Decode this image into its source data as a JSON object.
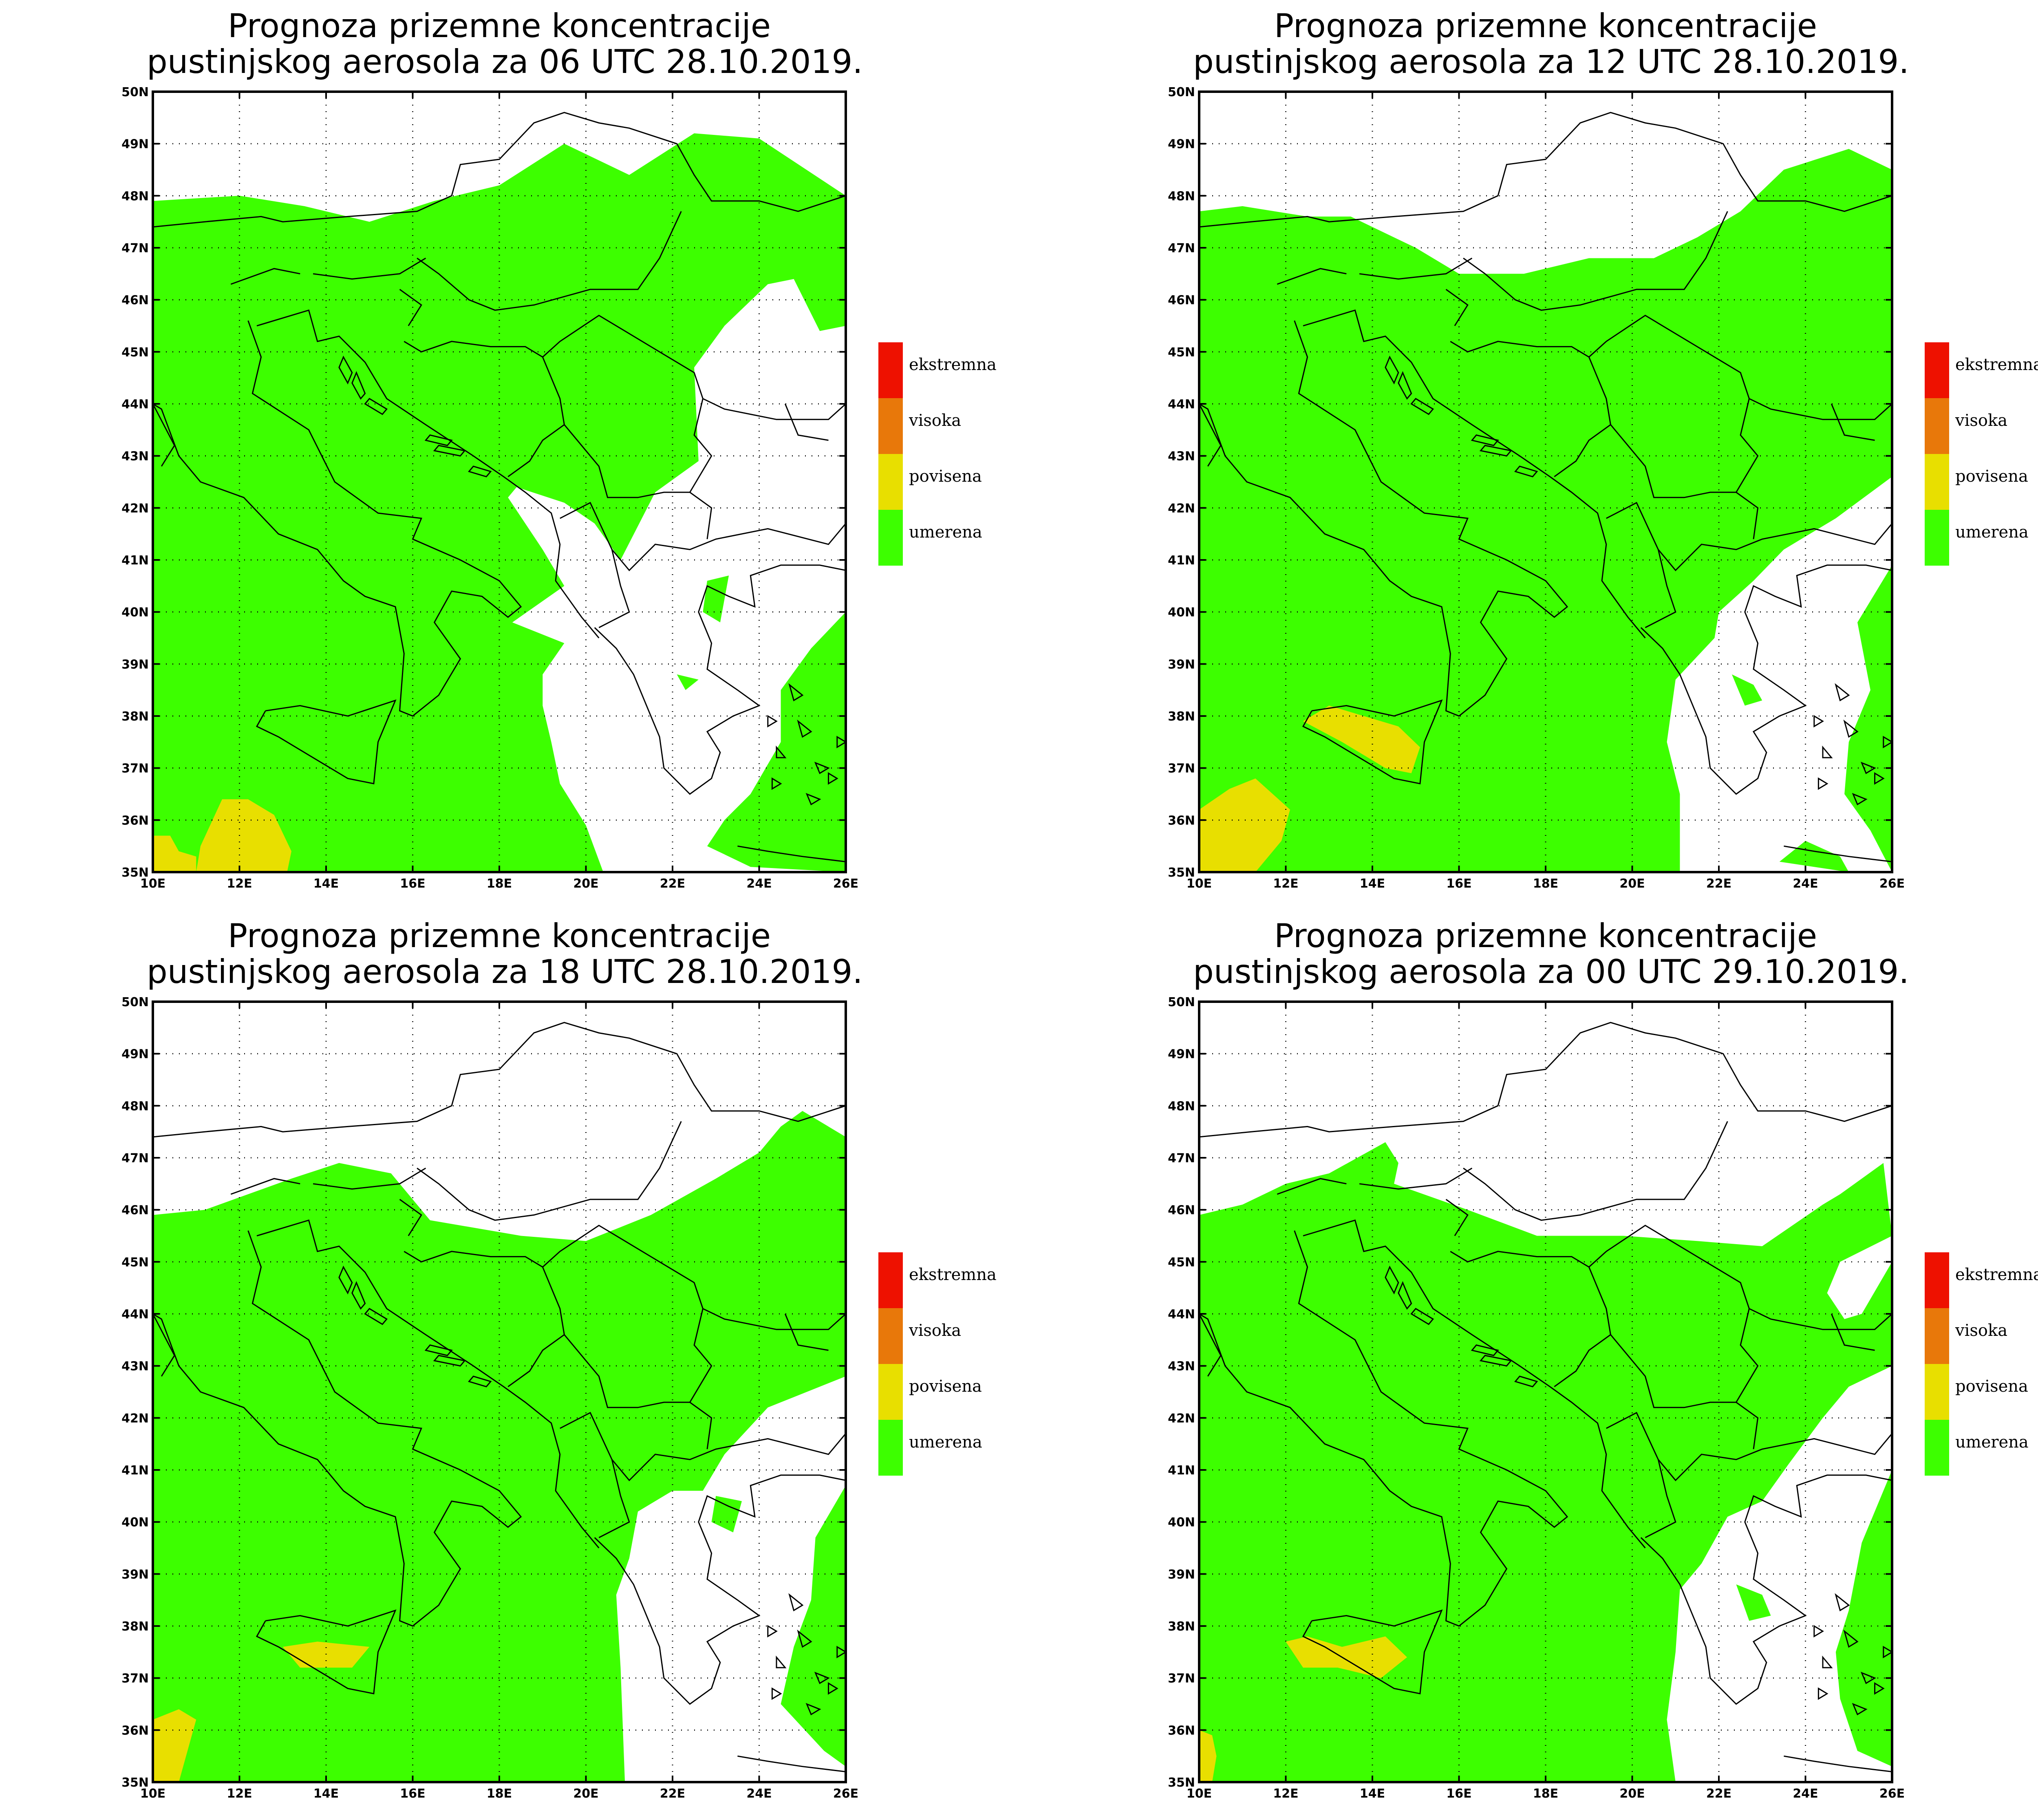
{
  "colors": {
    "umerena": "#3dff00",
    "povisena": "#e8df00",
    "visoka": "#e8780a",
    "ekstremna": "#ee1100",
    "border": "#000000",
    "grid": "#777777"
  },
  "axes": {
    "x_ticks": [
      "10E",
      "12E",
      "14E",
      "16E",
      "18E",
      "20E",
      "22E",
      "24E",
      "26E"
    ],
    "y_ticks": [
      "50N",
      "49N",
      "48N",
      "47N",
      "46N",
      "45N",
      "44N",
      "43N",
      "42N",
      "41N",
      "40N",
      "39N",
      "38N",
      "37N",
      "36N",
      "35N"
    ],
    "lon_range": [
      10,
      26
    ],
    "lat_range": [
      35,
      50
    ],
    "grid": "dotted"
  },
  "legend": [
    "ekstremna",
    "visoka",
    "povisena",
    "umerena"
  ],
  "panels": [
    {
      "title_line1": "Prognoza prizemne koncentracije",
      "title_line2": "pustinjskog aerosola za 06 UTC 28.10.2019."
    },
    {
      "title_line1": "Prognoza prizemne koncentracije",
      "title_line2": "pustinjskog aerosola za 12 UTC 28.10.2019."
    },
    {
      "title_line1": "Prognoza prizemne koncentracije",
      "title_line2": "pustinjskog aerosola za 18 UTC 28.10.2019."
    },
    {
      "title_line1": "Prognoza prizemne koncentracije",
      "title_line2": "pustinjskog aerosola za 00 UTC 29.10.2019."
    }
  ]
}
